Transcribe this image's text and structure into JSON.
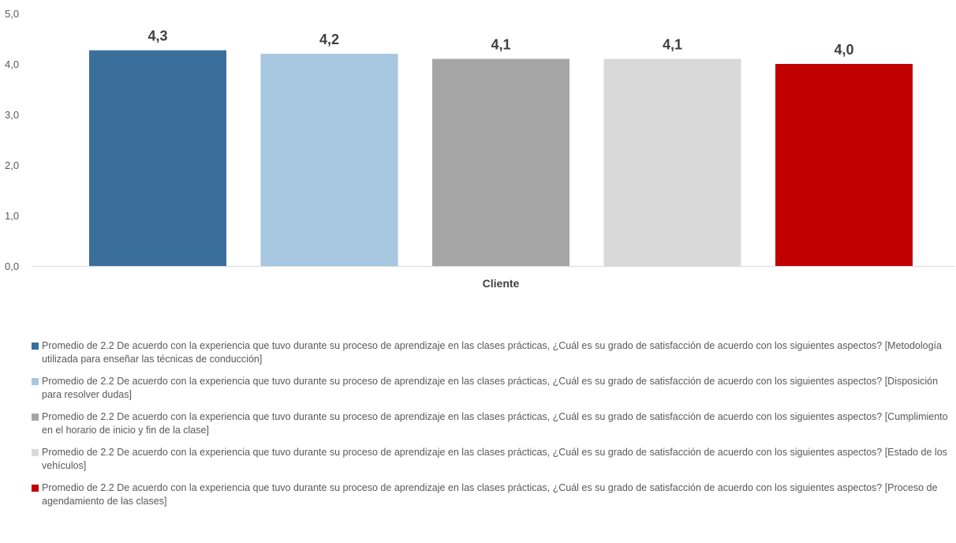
{
  "chart_data": {
    "type": "bar",
    "xlabel": "Cliente",
    "ylim": [
      0,
      5
    ],
    "yticks": [
      "0,0",
      "1,0",
      "2,0",
      "3,0",
      "4,0",
      "5,0"
    ],
    "ytick_values": [
      0,
      1,
      2,
      3,
      4,
      5
    ],
    "grid": false,
    "legend_position": "bottom",
    "series": [
      {
        "name": "Promedio de 2.2 De acuerdo con la experiencia que tuvo durante su proceso de aprendizaje en las clases prácticas, ¿Cuál es su grado de satisfacción de acuerdo con los siguientes aspectos? [Metodología utilizada para enseñar las técnicas de conducción]",
        "value": 4.27,
        "label": "4,3",
        "color": "#3a6f9c"
      },
      {
        "name": "Promedio de 2.2 De acuerdo con la experiencia que tuvo durante su proceso de aprendizaje en las clases prácticas, ¿Cuál es su grado de satisfacción de acuerdo con los siguientes aspectos? [Disposición para resolver dudas]",
        "value": 4.2,
        "label": "4,2",
        "color": "#a7c6e0"
      },
      {
        "name": "Promedio de 2.2 De acuerdo con la experiencia que tuvo durante su proceso de aprendizaje en las clases prácticas, ¿Cuál es su grado de satisfacción de acuerdo con los siguientes aspectos? [Cumplimiento en el horario de inicio y fin de la clase]",
        "value": 4.1,
        "label": "4,1",
        "color": "#a5a5a5"
      },
      {
        "name": "Promedio de 2.2 De acuerdo con la experiencia que tuvo durante su proceso de aprendizaje en las clases prácticas, ¿Cuál es su grado de satisfacción de acuerdo con los siguientes aspectos? [Estado de los vehículos]",
        "value": 4.1,
        "label": "4,1",
        "color": "#d9d9d9"
      },
      {
        "name": "Promedio de 2.2 De acuerdo con la experiencia que tuvo durante su proceso de aprendizaje en las clases prácticas, ¿Cuál es su grado de satisfacción de acuerdo con los siguientes aspectos? [Proceso de agendamiento de las clases]",
        "value": 4.0,
        "label": "4,0",
        "color": "#c00000"
      }
    ]
  }
}
